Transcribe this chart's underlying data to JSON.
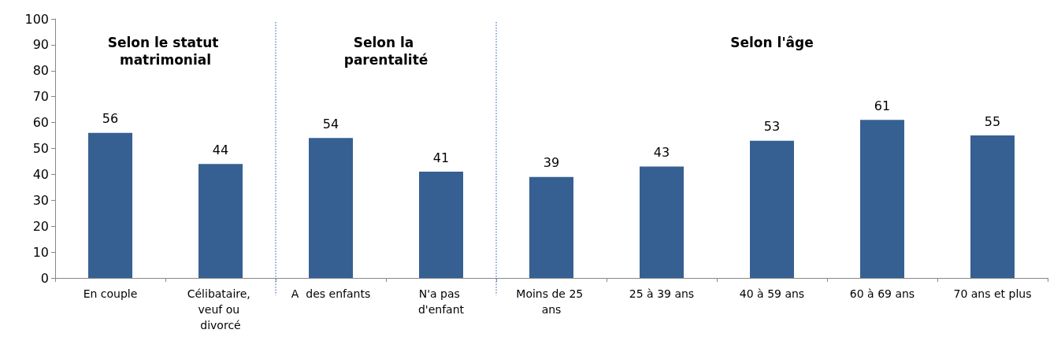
{
  "chart_data": {
    "type": "bar",
    "categories": [
      "En couple",
      "Célibataire, veuf ou divorcé",
      "A  des enfants",
      "N'a pas d'enfant",
      "Moins de 25 ans",
      "25 à 39 ans",
      "40 à 59 ans",
      "60 à 69 ans",
      "70 ans et plus"
    ],
    "values": [
      56,
      44,
      54,
      41,
      39,
      43,
      53,
      61,
      55
    ],
    "color": "#376092",
    "data_labels": true,
    "ylim": [
      0,
      100
    ],
    "yticks": [
      0,
      10,
      20,
      30,
      40,
      50,
      60,
      70,
      80,
      90,
      100
    ],
    "grid": false,
    "annotations": [
      "Selon le statut matrimonial",
      "Selon la parentalité",
      "Selon l'âge"
    ]
  }
}
